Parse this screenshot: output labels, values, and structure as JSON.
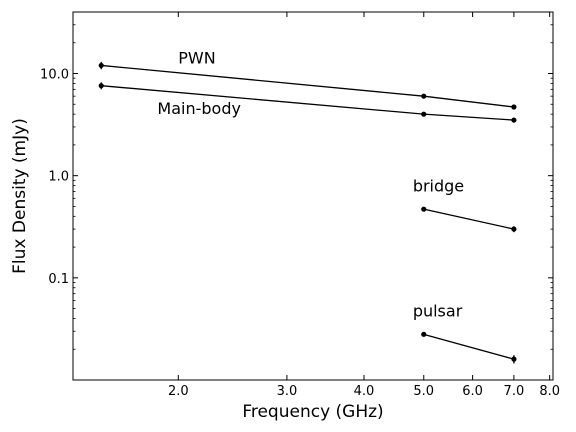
{
  "chart_data": {
    "type": "line",
    "xlabel": "Frequency (GHz)",
    "ylabel": "Flux Density (mJy)",
    "xscale": "log",
    "yscale": "log",
    "xlim": [
      1.35,
      8.1
    ],
    "ylim": [
      0.01,
      40
    ],
    "x_ticks": [
      {
        "value": 2.0,
        "label": "2.0"
      },
      {
        "value": 3.0,
        "label": "3.0"
      },
      {
        "value": 4.0,
        "label": "4.0"
      },
      {
        "value": 5.0,
        "label": "5.0"
      },
      {
        "value": 6.0,
        "label": "6.0"
      },
      {
        "value": 7.0,
        "label": "7.0"
      },
      {
        "value": 8.0,
        "label": "8.0"
      }
    ],
    "y_ticks": [
      {
        "value": 0.1,
        "label": "0.1"
      },
      {
        "value": 1.0,
        "label": "1.0"
      },
      {
        "value": 10.0,
        "label": "10.0"
      }
    ],
    "grid": false,
    "series": [
      {
        "name": "PWN",
        "x": [
          1.5,
          5.0,
          7.0
        ],
        "y": [
          12.0,
          6.0,
          4.7
        ],
        "err": [
          1.0,
          0.2,
          0.15
        ]
      },
      {
        "name": "Main-body",
        "x": [
          1.5,
          5.0,
          7.0
        ],
        "y": [
          7.6,
          4.0,
          3.5
        ],
        "err": [
          0.6,
          0.15,
          0.12
        ]
      },
      {
        "name": "bridge",
        "x": [
          5.0,
          7.0
        ],
        "y": [
          0.47,
          0.3
        ],
        "err": [
          0.02,
          0.02
        ]
      },
      {
        "name": "pulsar",
        "x": [
          5.0,
          7.0
        ],
        "y": [
          0.028,
          0.016
        ],
        "err": [
          0.001,
          0.0015
        ]
      }
    ],
    "annotations": [
      {
        "text": "PWN",
        "x": 2.0,
        "y": 12.5
      },
      {
        "text": "Main-body",
        "x": 1.85,
        "y": 4.0
      },
      {
        "text": "bridge",
        "x": 4.8,
        "y": 0.7
      },
      {
        "text": "pulsar",
        "x": 4.8,
        "y": 0.042
      }
    ]
  }
}
